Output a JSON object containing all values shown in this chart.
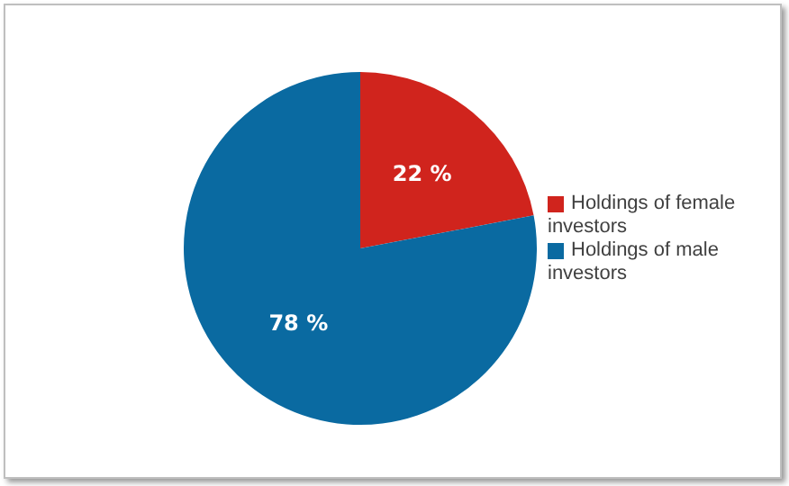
{
  "chart_data": {
    "type": "pie",
    "categories": [
      "Holdings of female investors",
      "Holdings of male investors"
    ],
    "values": [
      22,
      78
    ],
    "colors": [
      "#d0241d",
      "#0a6aa1"
    ],
    "value_labels": [
      "22 %",
      "78 %"
    ],
    "legend": "right"
  }
}
